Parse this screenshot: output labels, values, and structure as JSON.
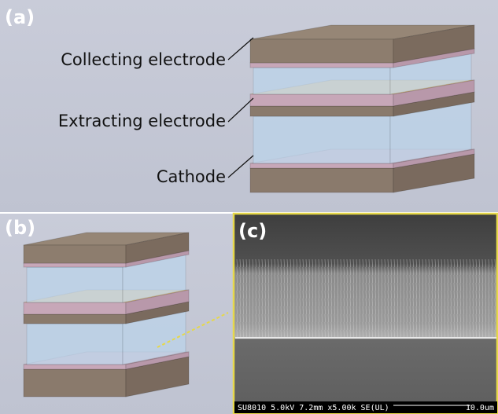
{
  "panels": {
    "a": {
      "label": "(a)",
      "labels": [
        "Collecting electrode",
        "Extracting electrode",
        "Cathode"
      ]
    },
    "b": {
      "label": "(b)"
    },
    "c": {
      "label": "(c)",
      "info": "SU8010 5.0kV 7.2mm x5.00k SE(UL)",
      "scale": "10.0um"
    }
  }
}
